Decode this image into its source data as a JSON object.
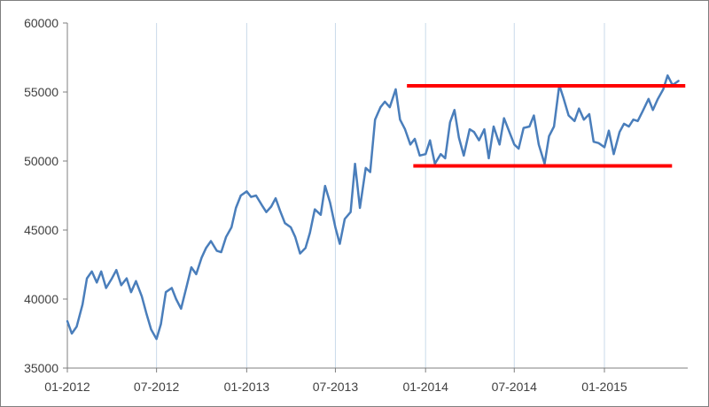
{
  "chart_data": {
    "type": "line",
    "title": "",
    "xlabel": "",
    "ylabel": "",
    "legend": "none",
    "grid": {
      "vertical": true,
      "horizontal": false
    },
    "colors": {
      "line": "#4a7ebb",
      "resistance": "#ff0000",
      "support": "#ff0000",
      "grid": "#c9daea",
      "axis": "#7f7f7f"
    },
    "xlim": [
      "2012-01-01",
      "2015-06-20"
    ],
    "ylim": [
      35000,
      60000
    ],
    "x_ticks": [
      {
        "date": "2012-01-01",
        "label": "01-2012"
      },
      {
        "date": "2012-07-01",
        "label": "07-2012"
      },
      {
        "date": "2013-01-01",
        "label": "01-2013"
      },
      {
        "date": "2013-07-01",
        "label": "07-2013"
      },
      {
        "date": "2014-01-01",
        "label": "01-2014"
      },
      {
        "date": "2014-07-01",
        "label": "07-2014"
      },
      {
        "date": "2015-01-01",
        "label": "01-2015"
      }
    ],
    "y_ticks": [
      {
        "value": 35000,
        "label": "35000"
      },
      {
        "value": 40000,
        "label": "40000"
      },
      {
        "value": 45000,
        "label": "45000"
      },
      {
        "value": 50000,
        "label": "50000"
      },
      {
        "value": 55000,
        "label": "55000"
      },
      {
        "value": 60000,
        "label": "60000"
      }
    ],
    "series": [
      {
        "x": [
          "2012-01-01",
          "2012-01-10",
          "2012-01-20",
          "2012-02-01",
          "2012-02-10",
          "2012-02-20",
          "2012-03-01",
          "2012-03-10",
          "2012-03-20",
          "2012-04-01",
          "2012-04-10",
          "2012-04-20",
          "2012-05-01",
          "2012-05-10",
          "2012-05-20",
          "2012-06-01",
          "2012-06-10",
          "2012-06-20",
          "2012-07-01",
          "2012-07-10",
          "2012-07-20",
          "2012-08-01",
          "2012-08-10",
          "2012-08-20",
          "2012-09-01",
          "2012-09-10",
          "2012-09-20",
          "2012-10-01",
          "2012-10-10",
          "2012-10-20",
          "2012-11-01",
          "2012-11-10",
          "2012-11-20",
          "2012-12-01",
          "2012-12-10",
          "2012-12-20",
          "2013-01-01",
          "2013-01-10",
          "2013-01-20",
          "2013-02-01",
          "2013-02-10",
          "2013-02-20",
          "2013-03-01",
          "2013-03-10",
          "2013-03-20",
          "2013-04-01",
          "2013-04-10",
          "2013-04-20",
          "2013-05-01",
          "2013-05-10",
          "2013-05-20",
          "2013-06-01",
          "2013-06-10",
          "2013-06-20",
          "2013-07-01",
          "2013-07-10",
          "2013-07-20",
          "2013-08-01",
          "2013-08-10",
          "2013-08-20",
          "2013-09-01",
          "2013-09-10",
          "2013-09-20",
          "2013-10-01",
          "2013-10-10",
          "2013-10-20",
          "2013-11-01",
          "2013-11-10",
          "2013-11-20",
          "2013-12-01",
          "2013-12-10",
          "2013-12-20",
          "2014-01-01",
          "2014-01-10",
          "2014-01-20",
          "2014-02-01",
          "2014-02-10",
          "2014-02-20",
          "2014-03-01",
          "2014-03-10",
          "2014-03-20",
          "2014-04-01",
          "2014-04-10",
          "2014-04-20",
          "2014-05-01",
          "2014-05-10",
          "2014-05-20",
          "2014-06-01",
          "2014-06-10",
          "2014-06-20",
          "2014-07-01",
          "2014-07-10",
          "2014-07-20",
          "2014-08-01",
          "2014-08-10",
          "2014-08-20",
          "2014-09-01",
          "2014-09-10",
          "2014-09-20",
          "2014-10-01",
          "2014-10-10",
          "2014-10-20",
          "2014-11-01",
          "2014-11-10",
          "2014-11-20",
          "2014-12-01",
          "2014-12-10",
          "2014-12-20",
          "2015-01-01",
          "2015-01-10",
          "2015-01-20",
          "2015-02-01",
          "2015-02-10",
          "2015-02-20",
          "2015-03-01",
          "2015-03-10",
          "2015-03-20",
          "2015-04-01",
          "2015-04-10",
          "2015-04-20",
          "2015-05-01",
          "2015-05-10",
          "2015-05-20",
          "2015-06-01"
        ],
        "values": [
          38400,
          37500,
          38000,
          39600,
          41500,
          42000,
          41200,
          42000,
          40800,
          41500,
          42100,
          41000,
          41500,
          40500,
          41300,
          40200,
          39000,
          37800,
          37100,
          38200,
          40500,
          40800,
          40000,
          39300,
          41000,
          42300,
          41800,
          43000,
          43700,
          44200,
          43500,
          43400,
          44500,
          45200,
          46600,
          47500,
          47800,
          47400,
          47500,
          46800,
          46300,
          46700,
          47300,
          46400,
          45500,
          45200,
          44500,
          43300,
          43700,
          44800,
          46500,
          46100,
          48200,
          47000,
          45200,
          44000,
          45800,
          46300,
          49800,
          46600,
          49500,
          49200,
          53000,
          53900,
          54300,
          53900,
          55200,
          53000,
          52300,
          51200,
          51600,
          50400,
          50500,
          51500,
          49800,
          50500,
          50200,
          52800,
          53700,
          51700,
          50400,
          52300,
          52100,
          51500,
          52300,
          50200,
          52500,
          51200,
          53100,
          52200,
          51200,
          50900,
          52400,
          52500,
          53300,
          51200,
          49800,
          51800,
          52500,
          55500,
          54500,
          53300,
          52900,
          53800,
          53000,
          53400,
          51400,
          51300,
          51000,
          52200,
          50500,
          52100,
          52700,
          52500,
          53000,
          52900,
          53600,
          54500,
          53700,
          54500,
          55200,
          56200,
          55500,
          55800
        ]
      }
    ],
    "annotations": [
      {
        "type": "hline",
        "label": "",
        "value": 55450,
        "x_start": "2013-11-24",
        "x_end": "2015-06-15"
      },
      {
        "type": "hline",
        "label": "",
        "value": 49650,
        "x_start": "2013-12-07",
        "x_end": "2015-05-19"
      }
    ]
  }
}
